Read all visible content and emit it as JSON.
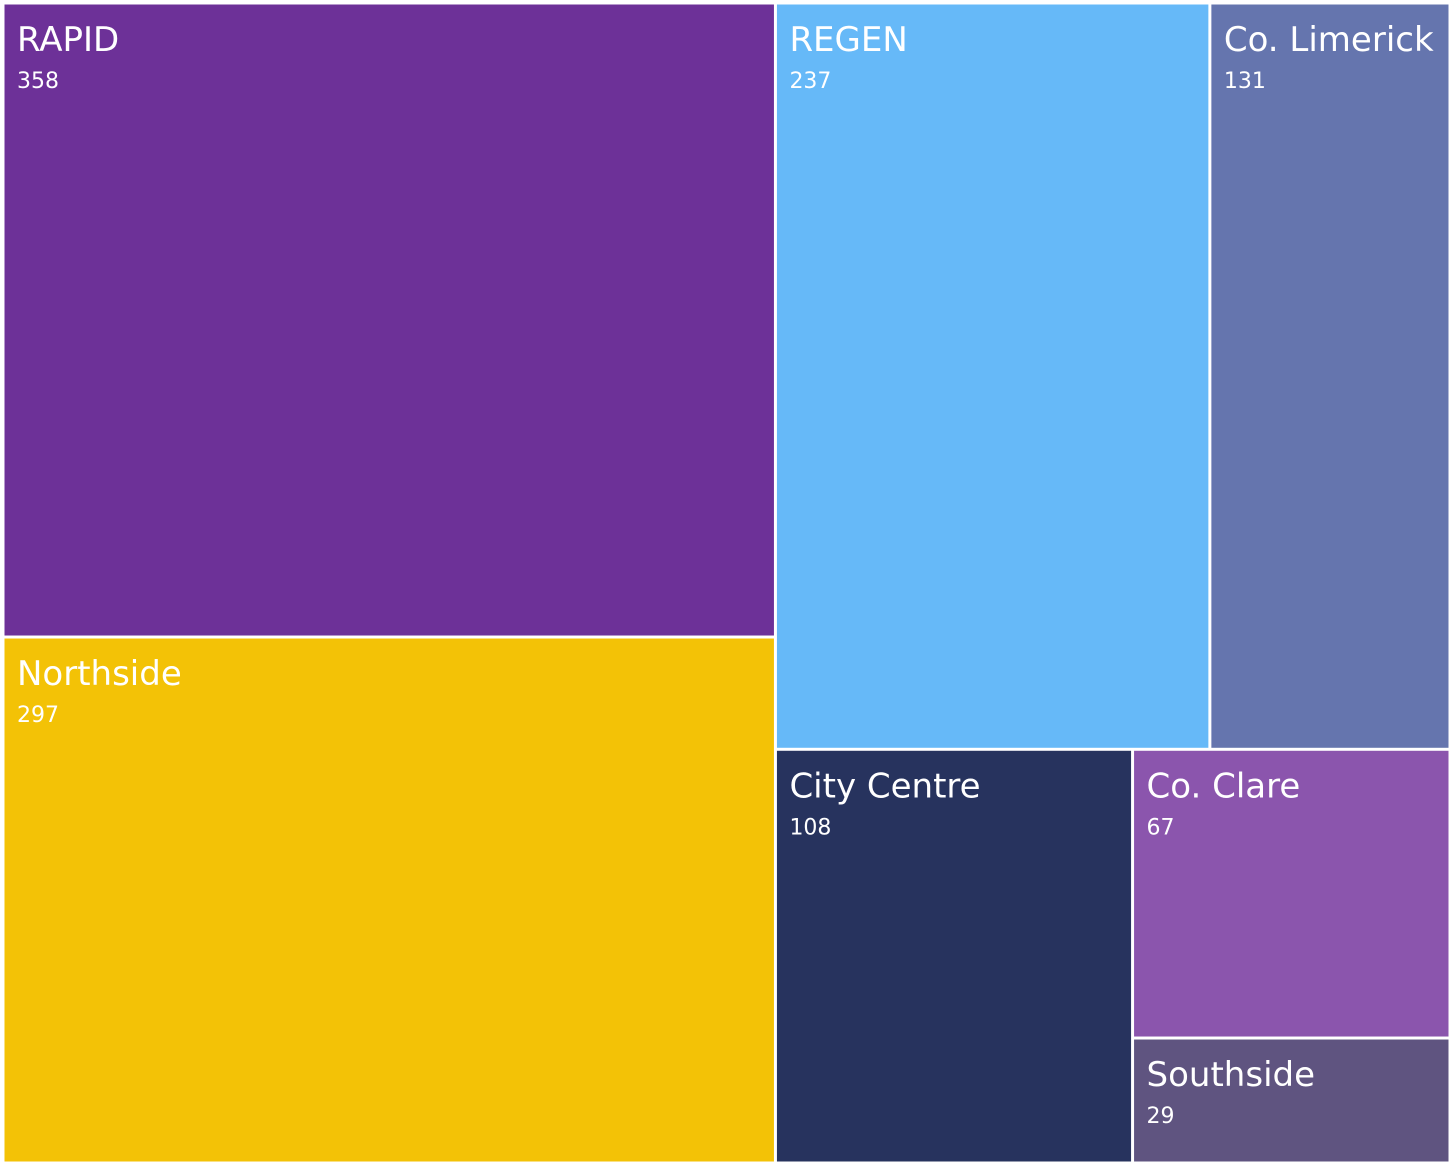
{
  "chart_data": {
    "type": "treemap",
    "categories": [
      "RAPID",
      "Northside",
      "REGEN",
      "Co. Limerick",
      "City Centre",
      "Co. Clare",
      "Southside"
    ],
    "values": [
      358,
      297,
      237,
      131,
      108,
      67,
      29
    ],
    "colors": [
      "#6d3198",
      "#f3c206",
      "#66b9f8",
      "#6575ae",
      "#27335e",
      "#8b55ad",
      "#5f5480"
    ]
  }
}
